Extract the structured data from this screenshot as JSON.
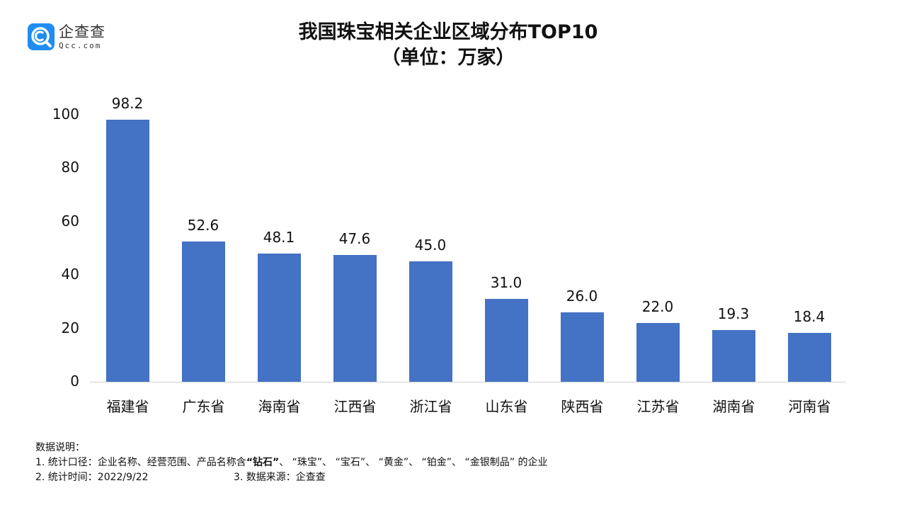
{
  "logo": {
    "cn": "企查查",
    "en": "Qcc.com",
    "icon": "qcc-magnifier-icon",
    "color": "#1f8df2"
  },
  "title": {
    "line1": "我国珠宝相关企业区域分布TOP10",
    "line2": "（单位：万家）"
  },
  "notes": {
    "heading": "数据说明：",
    "line1_prefix": "1. 统计口径：企业名称、经营范围、产品名称含",
    "line1_bold": "“钻石”",
    "line1_rest": "、 “珠宝”、 “宝石”、 “黄金”、 “铂金”、 “金银制品” 的企业",
    "line2": "2. 统计时间：2022/9/22",
    "line3": "3. 数据来源：企查查"
  },
  "chart_data": {
    "type": "bar",
    "title": "我国珠宝相关企业区域分布TOP10（单位：万家）",
    "xlabel": "",
    "ylabel": "万家",
    "categories": [
      "福建省",
      "广东省",
      "海南省",
      "江西省",
      "浙江省",
      "山东省",
      "陕西省",
      "江苏省",
      "湖南省",
      "河南省"
    ],
    "values": [
      98.2,
      52.6,
      48.1,
      47.6,
      45.0,
      31.0,
      26.0,
      22.0,
      19.3,
      18.4
    ],
    "labels": [
      "98.2",
      "52.6",
      "48.1",
      "47.6",
      "45.0",
      "31.0",
      "26.0",
      "22.0",
      "19.3",
      "18.4"
    ],
    "yticks": [
      "0",
      "20",
      "40",
      "60",
      "80",
      "100"
    ],
    "ylim": [
      0,
      100
    ],
    "grid": false,
    "legend": "none",
    "bar_color": "#4472c4"
  }
}
